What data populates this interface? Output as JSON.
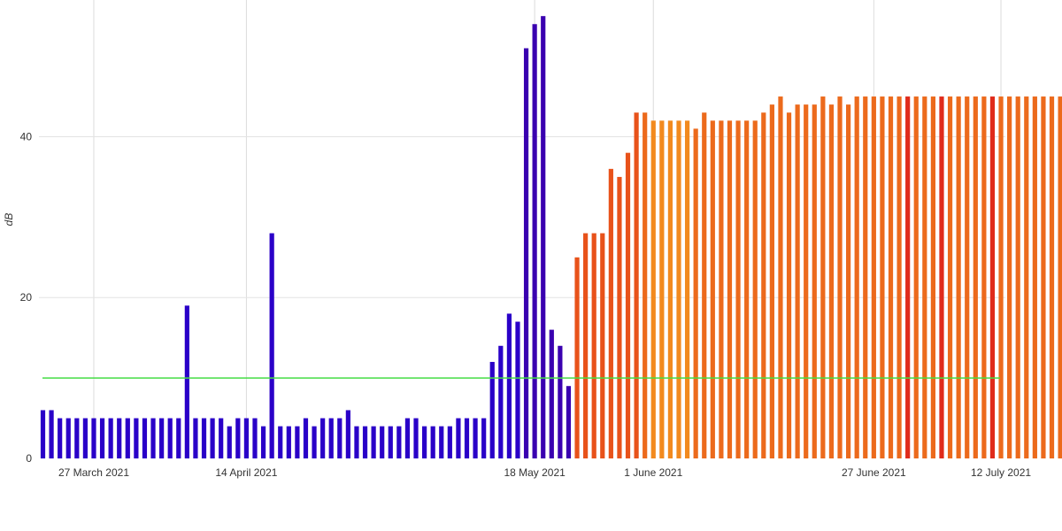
{
  "chart_data": {
    "type": "bar",
    "title": "",
    "xlabel": "",
    "ylabel": "dB",
    "x_start": "2021-03-21",
    "x_tick_labels": [
      "27 March 2021",
      "14 April 2021",
      "18 May 2021",
      "1 June 2021",
      "27 June 2021",
      "12 July 2021"
    ],
    "y_tick_labels": [
      "0",
      "20",
      "40"
    ],
    "ylim": [
      0,
      57
    ],
    "grid": true,
    "threshold": {
      "value": 10,
      "color": "#44dd44"
    },
    "values": [
      6,
      6,
      5,
      5,
      5,
      5,
      5,
      5,
      5,
      5,
      5,
      5,
      5,
      5,
      5,
      5,
      5,
      19,
      5,
      5,
      5,
      5,
      4,
      5,
      5,
      5,
      4,
      28,
      4,
      4,
      4,
      5,
      4,
      5,
      5,
      5,
      6,
      4,
      4,
      4,
      4,
      4,
      4,
      5,
      5,
      4,
      4,
      4,
      4,
      5,
      5,
      5,
      5,
      12,
      14,
      18,
      17,
      51,
      54,
      55,
      16,
      14,
      9,
      25,
      28,
      28,
      28,
      36,
      35,
      38,
      43,
      43,
      42,
      42,
      42,
      42,
      42,
      41,
      43,
      42,
      42,
      42,
      42,
      42,
      42,
      43,
      44,
      45,
      43,
      44,
      44,
      44,
      45,
      44,
      45,
      44,
      45,
      45,
      45,
      45,
      45,
      45,
      45,
      45,
      45,
      45,
      45,
      45,
      45,
      45,
      45,
      45,
      45,
      45,
      45,
      45,
      45,
      45,
      45,
      45,
      45
    ],
    "colors": [
      "#2a00c8",
      "#2a00c8",
      "#2a00c8",
      "#2a00c8",
      "#2a00c8",
      "#2a00c8",
      "#2a00c8",
      "#2a00c8",
      "#2a00c8",
      "#2a00c8",
      "#2a00c8",
      "#2a00c8",
      "#2a00c8",
      "#2a00c8",
      "#2a00c8",
      "#2a00c8",
      "#2a00c8",
      "#2a00c8",
      "#2a00c8",
      "#2a00c8",
      "#2a00c8",
      "#2a00c8",
      "#2a00c8",
      "#2a00c8",
      "#2a00c8",
      "#2a00c8",
      "#2a00c8",
      "#2a00c8",
      "#2a00c8",
      "#2a00c8",
      "#2a00c8",
      "#2a00c8",
      "#2a00c8",
      "#2a00c8",
      "#2a00c8",
      "#2a00c8",
      "#2a00c8",
      "#2a00c8",
      "#2a00c8",
      "#2a00c8",
      "#2a00c8",
      "#2a00c8",
      "#2a00c8",
      "#2a00c8",
      "#2a00c8",
      "#2a00c8",
      "#2a00c8",
      "#2a00c8",
      "#2a00c8",
      "#2a00c8",
      "#2a00c8",
      "#2a00c8",
      "#2a00c8",
      "#2a00c8",
      "#2a00c8",
      "#2a00c8",
      "#2a00c8",
      "#3a00b0",
      "#3a00b0",
      "#3a00b0",
      "#3a00b0",
      "#3a00b0",
      "#3a00b0",
      "#e8521a",
      "#e8521a",
      "#e8521a",
      "#e8521a",
      "#e8521a",
      "#e8521a",
      "#e8521a",
      "#e8521a",
      "#ec6a1c",
      "#f28a1e",
      "#f28a1e",
      "#f28a1e",
      "#f28a1e",
      "#f28a1e",
      "#ec6a1c",
      "#ec6a1c",
      "#ec6a1c",
      "#ec6a1c",
      "#ec6a1c",
      "#ec6a1c",
      "#ec6a1c",
      "#ec6a1c",
      "#ec6a1c",
      "#ec6a1c",
      "#ec6a1c",
      "#ec6a1c",
      "#ec6a1c",
      "#ec6a1c",
      "#ec6a1c",
      "#ec6a1c",
      "#ec6a1c",
      "#ec6a1c",
      "#ec6a1c",
      "#ec6a1c",
      "#ec6a1c",
      "#ec6a1c",
      "#ec6a1c",
      "#ec6a1c",
      "#ec6a1c",
      "#e02b1b",
      "#ec6a1c",
      "#ec6a1c",
      "#ec6a1c",
      "#e02b1b",
      "#ec6a1c",
      "#ec6a1c",
      "#ec6a1c",
      "#ec6a1c",
      "#ec6a1c",
      "#e02b1b",
      "#ec6a1c",
      "#ec6a1c",
      "#ec6a1c",
      "#ec6a1c",
      "#ec6a1c",
      "#ec6a1c",
      "#ec6a1c",
      "#ec6a1c",
      "#ec6a1c",
      "#ec6a1c"
    ]
  }
}
